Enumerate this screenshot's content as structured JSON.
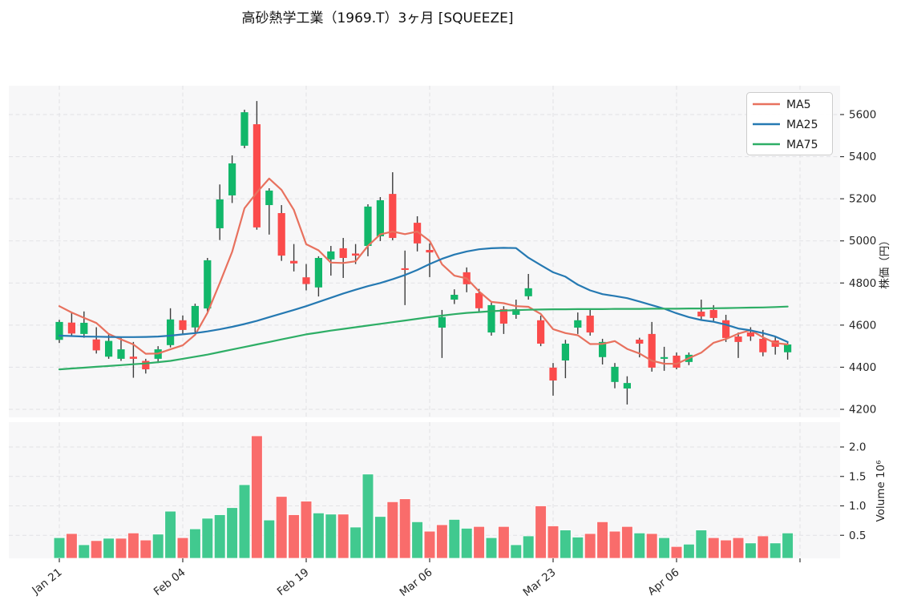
{
  "title": "高砂熱学工業（1969.T）3ヶ月 [SQUEEZE]",
  "legend": {
    "items": [
      {
        "label": "MA5",
        "color": "#e8715e"
      },
      {
        "label": "MA25",
        "color": "#2579b2"
      },
      {
        "label": "MA75",
        "color": "#2eae66"
      }
    ]
  },
  "axes": {
    "price_label": "株価（円）",
    "volume_label": "Volume  10⁶",
    "price_ticks": [
      4200,
      4400,
      4600,
      4800,
      5000,
      5200,
      5400,
      5600
    ],
    "volume_ticks": [
      0.5,
      1.0,
      1.5,
      2.0
    ],
    "x_ticks": [
      {
        "i": 0,
        "label": "Jan 21"
      },
      {
        "i": 10,
        "label": "Feb 04"
      },
      {
        "i": 20,
        "label": "Feb 19"
      },
      {
        "i": 30,
        "label": "Mar 06"
      },
      {
        "i": 40,
        "label": "Mar 23"
      },
      {
        "i": 50,
        "label": "Apr 06"
      },
      {
        "i": 60,
        "label": ""
      }
    ]
  },
  "colors": {
    "candle_up": "#12b76a",
    "candle_down": "#fb4b4b",
    "vol_up": "#41c98f",
    "vol_down": "#f96c6b",
    "wick": "#3c3c3c",
    "grid": "#e2e2e5",
    "panel_bg": "#f7f7f8",
    "ma5": "#e8715e",
    "ma25": "#2579b2",
    "ma75": "#2eae66",
    "legend_border": "#cccccc",
    "tick": "#333333"
  },
  "chart_data": {
    "type": "candlestick+volume",
    "title": "高砂熱学工業（1969.T）3ヶ月 [SQUEEZE]",
    "ylabel_price": "株価（円）",
    "ylabel_volume": "Volume  10⁶",
    "price_ylim": [
      4162,
      5737
    ],
    "volume_unit": 1000000,
    "grid": "dashed",
    "legend_position": "upper-right",
    "x_tick_indices": [
      0,
      10,
      20,
      30,
      40,
      50,
      60
    ],
    "x_tick_labels": [
      "Jan 21",
      "Feb 04",
      "Feb 19",
      "Mar 06",
      "Mar 23",
      "Apr 06",
      ""
    ],
    "candles_note": "each candle = [open, high, low, close, volume_millions]",
    "candles": [
      [
        4530,
        4625,
        4515,
        4615,
        0.46
      ],
      [
        4612,
        4660,
        4545,
        4560,
        0.53
      ],
      [
        4558,
        4665,
        4540,
        4611,
        0.34
      ],
      [
        4532,
        4590,
        4465,
        4480,
        0.41
      ],
      [
        4450,
        4560,
        4440,
        4525,
        0.45
      ],
      [
        4440,
        4540,
        4430,
        4485,
        0.45
      ],
      [
        4450,
        4520,
        4350,
        4440,
        0.54
      ],
      [
        4430,
        4440,
        4370,
        4390,
        0.42
      ],
      [
        4440,
        4500,
        4420,
        4485,
        0.52
      ],
      [
        4505,
        4680,
        4494,
        4627,
        0.91
      ],
      [
        4623,
        4646,
        4556,
        4577,
        0.46
      ],
      [
        4589,
        4702,
        4558,
        4691,
        0.61
      ],
      [
        4679,
        4919,
        4664,
        4908,
        0.79
      ],
      [
        5060,
        5268,
        5004,
        5197,
        0.85
      ],
      [
        5216,
        5406,
        5180,
        5368,
        0.97
      ],
      [
        5452,
        5623,
        5440,
        5611,
        1.36
      ],
      [
        5554,
        5664,
        5053,
        5064,
        2.19
      ],
      [
        5170,
        5250,
        5030,
        5239,
        0.76
      ],
      [
        5132,
        5170,
        4905,
        4930,
        1.16
      ],
      [
        4905,
        4985,
        4855,
        4893,
        0.85
      ],
      [
        4827,
        4890,
        4765,
        4795,
        1.08
      ],
      [
        4779,
        4927,
        4736,
        4919,
        0.88
      ],
      [
        4912,
        4976,
        4835,
        4950,
        0.86
      ],
      [
        4965,
        5014,
        4824,
        4919,
        0.86
      ],
      [
        4940,
        4985,
        4890,
        4930,
        0.64
      ],
      [
        4976,
        5174,
        4927,
        5163,
        1.54
      ],
      [
        5022,
        5208,
        4999,
        5193,
        0.82
      ],
      [
        5223,
        5326,
        5003,
        5014,
        1.07
      ],
      [
        4870,
        4954,
        4695,
        4862,
        1.12
      ],
      [
        5086,
        5117,
        4950,
        4988,
        0.73
      ],
      [
        4957,
        4988,
        4828,
        4945,
        0.57
      ],
      [
        4588,
        4672,
        4444,
        4638,
        0.68
      ],
      [
        4721,
        4770,
        4700,
        4744,
        0.77
      ],
      [
        4851,
        4874,
        4756,
        4794,
        0.62
      ],
      [
        4752,
        4772,
        4665,
        4680,
        0.65
      ],
      [
        4565,
        4710,
        4550,
        4695,
        0.46
      ],
      [
        4676,
        4690,
        4558,
        4607,
        0.65
      ],
      [
        4649,
        4721,
        4630,
        4676,
        0.34
      ],
      [
        4737,
        4843,
        4721,
        4775,
        0.49
      ],
      [
        4623,
        4645,
        4500,
        4512,
        1.0
      ],
      [
        4398,
        4420,
        4265,
        4337,
        0.66
      ],
      [
        4432,
        4530,
        4348,
        4512,
        0.59
      ],
      [
        4588,
        4660,
        4558,
        4623,
        0.47
      ],
      [
        4645,
        4675,
        4550,
        4565,
        0.53
      ],
      [
        4448,
        4535,
        4413,
        4520,
        0.73
      ],
      [
        4330,
        4420,
        4300,
        4402,
        0.57
      ],
      [
        4299,
        4357,
        4223,
        4325,
        0.65
      ],
      [
        4531,
        4540,
        4447,
        4512,
        0.54
      ],
      [
        4558,
        4615,
        4379,
        4398,
        0.53
      ],
      [
        4440,
        4497,
        4383,
        4448,
        0.46
      ],
      [
        4455,
        4470,
        4390,
        4398,
        0.31
      ],
      [
        4425,
        4470,
        4410,
        4459,
        0.35
      ],
      [
        4664,
        4721,
        4623,
        4641,
        0.59
      ],
      [
        4672,
        4695,
        4620,
        4634,
        0.46
      ],
      [
        4623,
        4649,
        4520,
        4539,
        0.42
      ],
      [
        4546,
        4565,
        4444,
        4520,
        0.46
      ],
      [
        4565,
        4590,
        4525,
        4546,
        0.37
      ],
      [
        4535,
        4577,
        4452,
        4471,
        0.49
      ],
      [
        4527,
        4546,
        4460,
        4497,
        0.37
      ],
      [
        4471,
        4520,
        4436,
        4508,
        0.54
      ]
    ],
    "series": [
      {
        "name": "MA5",
        "values": [
          4690,
          4660,
          4635,
          4610,
          4558,
          4532,
          4508,
          4464,
          4465,
          4485,
          4504,
          4554,
          4658,
          4800,
          4948,
          5155,
          5230,
          5296,
          5242,
          5147,
          4984,
          4955,
          4897,
          4895,
          4903,
          4976,
          5031,
          5044,
          5032,
          5044,
          5000,
          4889,
          4835,
          4822,
          4760,
          4710,
          4704,
          4690,
          4687,
          4653,
          4581,
          4562,
          4552,
          4510,
          4511,
          4524,
          4487,
          4465,
          4431,
          4417,
          4416,
          4443,
          4469,
          4516,
          4534,
          4559,
          4576,
          4542,
          4515,
          4508
        ]
      },
      {
        "name": "MA25",
        "values": [
          4550,
          4548,
          4546,
          4545,
          4544,
          4543,
          4543,
          4544,
          4546,
          4550,
          4556,
          4562,
          4570,
          4580,
          4592,
          4605,
          4620,
          4638,
          4655,
          4672,
          4690,
          4710,
          4730,
          4750,
          4768,
          4785,
          4800,
          4818,
          4838,
          4862,
          4890,
          4915,
          4935,
          4950,
          4960,
          4965,
          4967,
          4966,
          4920,
          4885,
          4851,
          4830,
          4792,
          4765,
          4747,
          4738,
          4728,
          4712,
          4695,
          4678,
          4656,
          4638,
          4624,
          4616,
          4602,
          4584,
          4575,
          4562,
          4546,
          4520
        ]
      },
      {
        "name": "MA75",
        "values": [
          4390,
          4394,
          4398,
          4402,
          4406,
          4410,
          4414,
          4418,
          4424,
          4430,
          4440,
          4450,
          4460,
          4472,
          4484,
          4496,
          4508,
          4520,
          4532,
          4544,
          4556,
          4565,
          4574,
          4582,
          4590,
          4598,
          4606,
          4614,
          4622,
          4630,
          4638,
          4645,
          4652,
          4658,
          4662,
          4666,
          4669,
          4671,
          4673,
          4674,
          4675,
          4675,
          4676,
          4676,
          4676,
          4677,
          4677,
          4677,
          4678,
          4678,
          4678,
          4679,
          4679,
          4680,
          4681,
          4682,
          4683,
          4684,
          4686,
          4688
        ]
      }
    ]
  }
}
